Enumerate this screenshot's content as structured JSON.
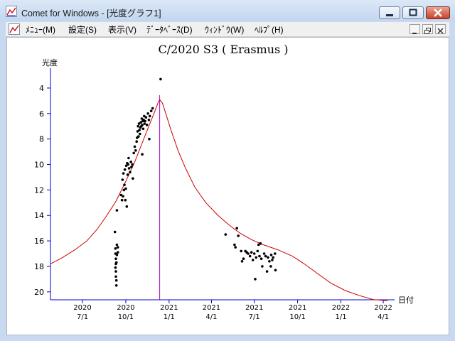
{
  "window": {
    "title": "Comet for Windows - [光度グラフ1]",
    "icons": {
      "app": "graph-app-icon",
      "minimize": "minimize-icon",
      "maximize": "maximize-icon",
      "close": "close-icon"
    }
  },
  "menu": {
    "items": [
      "ﾒﾆｭｰ(M)",
      "設定(S)",
      "表示(V)",
      "ﾃﾞｰﾀﾍﾞｰｽ(D)",
      "ｳｨﾝﾄﾞｳ(W)",
      "ﾍﾙﾌﾟ(H)"
    ]
  },
  "colors": {
    "curve": "#cc0000",
    "marker": "#aa00cc",
    "points": "#000000",
    "axis": "#0000cc"
  },
  "chart_data": {
    "type": "scatter",
    "title": "C/2020 S3 ( Erasmus )",
    "ylabel": "光度",
    "xlabel": "日付",
    "ylim": [
      20,
      3
    ],
    "y_inverted": true,
    "yticks": [
      4,
      6,
      8,
      10,
      12,
      14,
      16,
      18,
      20
    ],
    "xticks": [
      {
        "x": "2020-07-01",
        "year": "2020",
        "md": "7/1"
      },
      {
        "x": "2020-10-01",
        "year": "2020",
        "md": "10/1"
      },
      {
        "x": "2021-01-01",
        "year": "2021",
        "md": "1/1"
      },
      {
        "x": "2021-04-01",
        "year": "2021",
        "md": "4/1"
      },
      {
        "x": "2021-07-01",
        "year": "2021",
        "md": "7/1"
      },
      {
        "x": "2021-10-01",
        "year": "2021",
        "md": "10/1"
      },
      {
        "x": "2022-01-01",
        "year": "2022",
        "md": "1/1"
      },
      {
        "x": "2022-04-01",
        "year": "2022",
        "md": "4/1"
      }
    ],
    "xlim": [
      "2020-04-24",
      "2022-04-25"
    ],
    "perihelion_marker": "2020-12-12",
    "series": [
      {
        "type": "line",
        "points": [
          [
            "2020-04-24",
            17.8
          ],
          [
            "2020-05-20",
            17.3
          ],
          [
            "2020-06-15",
            16.7
          ],
          [
            "2020-07-10",
            16.0
          ],
          [
            "2020-08-01",
            15.1
          ],
          [
            "2020-08-20",
            14.1
          ],
          [
            "2020-09-10",
            12.9
          ],
          [
            "2020-09-30",
            11.4
          ],
          [
            "2020-10-20",
            9.8
          ],
          [
            "2020-11-05",
            8.3
          ],
          [
            "2020-11-20",
            6.9
          ],
          [
            "2020-12-01",
            5.9
          ],
          [
            "2020-12-08",
            5.2
          ],
          [
            "2020-12-12",
            4.9
          ],
          [
            "2020-12-18",
            5.2
          ],
          [
            "2020-12-25",
            6.0
          ],
          [
            "2021-01-05",
            7.3
          ],
          [
            "2021-01-20",
            8.9
          ],
          [
            "2021-02-05",
            10.3
          ],
          [
            "2021-02-25",
            11.8
          ],
          [
            "2021-03-20",
            13.0
          ],
          [
            "2021-04-15",
            14.0
          ],
          [
            "2021-05-10",
            14.8
          ],
          [
            "2021-06-01",
            15.4
          ],
          [
            "2021-06-25",
            15.9
          ],
          [
            "2021-07-20",
            16.3
          ],
          [
            "2021-08-20",
            16.7
          ],
          [
            "2021-09-20",
            17.2
          ],
          [
            "2021-10-15",
            17.8
          ],
          [
            "2021-11-10",
            18.5
          ],
          [
            "2021-12-10",
            19.3
          ],
          [
            "2022-01-10",
            19.9
          ],
          [
            "2022-02-10",
            20.3
          ],
          [
            "2022-03-10",
            20.6
          ],
          [
            "2022-04-10",
            20.7
          ]
        ]
      },
      {
        "type": "scatter",
        "points": [
          [
            "2020-09-08",
            15.3
          ],
          [
            "2020-09-09",
            16.6
          ],
          [
            "2020-09-09",
            17.0
          ],
          [
            "2020-09-10",
            17.4
          ],
          [
            "2020-09-10",
            17.8
          ],
          [
            "2020-09-09",
            18.1
          ],
          [
            "2020-09-10",
            18.4
          ],
          [
            "2020-09-10",
            18.8
          ],
          [
            "2020-09-11",
            19.1
          ],
          [
            "2020-09-11",
            19.5
          ],
          [
            "2020-09-12",
            16.3
          ],
          [
            "2020-09-12",
            17.1
          ],
          [
            "2020-09-14",
            16.9
          ],
          [
            "2020-09-14",
            16.5
          ],
          [
            "2020-09-11",
            17.7
          ],
          [
            "2020-09-12",
            13.6
          ],
          [
            "2020-09-21",
            12.4
          ],
          [
            "2020-09-23",
            12.8
          ],
          [
            "2020-09-24",
            11.2
          ],
          [
            "2020-09-25",
            12.5
          ],
          [
            "2020-09-26",
            10.7
          ],
          [
            "2020-09-27",
            12.0
          ],
          [
            "2020-09-28",
            11.6
          ],
          [
            "2020-09-29",
            10.4
          ],
          [
            "2020-09-30",
            12.8
          ],
          [
            "2020-10-01",
            11.9
          ],
          [
            "2020-10-02",
            10.1
          ],
          [
            "2020-10-03",
            13.3
          ],
          [
            "2020-10-04",
            9.9
          ],
          [
            "2020-10-05",
            10.8
          ],
          [
            "2020-10-06",
            10.0
          ],
          [
            "2020-10-07",
            9.5
          ],
          [
            "2020-10-08",
            10.3
          ],
          [
            "2020-10-10",
            10.6
          ],
          [
            "2020-10-12",
            9.8
          ],
          [
            "2020-10-13",
            10.2
          ],
          [
            "2020-10-15",
            10.0
          ],
          [
            "2020-10-16",
            11.1
          ],
          [
            "2020-10-18",
            9.1
          ],
          [
            "2020-10-20",
            8.6
          ],
          [
            "2020-10-22",
            8.9
          ],
          [
            "2020-10-24",
            8.2
          ],
          [
            "2020-10-25",
            7.9
          ],
          [
            "2020-10-26",
            7.4
          ],
          [
            "2020-10-27",
            7.0
          ],
          [
            "2020-10-28",
            7.8
          ],
          [
            "2020-10-29",
            6.8
          ],
          [
            "2020-10-30",
            7.3
          ],
          [
            "2020-10-31",
            7.6
          ],
          [
            "2020-11-01",
            7.1
          ],
          [
            "2020-11-02",
            6.7
          ],
          [
            "2020-11-03",
            7.0
          ],
          [
            "2020-11-04",
            6.4
          ],
          [
            "2020-11-05",
            6.9
          ],
          [
            "2020-11-06",
            6.6
          ],
          [
            "2020-11-07",
            7.2
          ],
          [
            "2020-11-08",
            6.5
          ],
          [
            "2020-11-09",
            6.2
          ],
          [
            "2020-11-10",
            6.8
          ],
          [
            "2020-11-11",
            6.6
          ],
          [
            "2020-11-13",
            6.3
          ],
          [
            "2020-11-15",
            6.9
          ],
          [
            "2020-11-17",
            6.0
          ],
          [
            "2020-11-19",
            6.5
          ],
          [
            "2020-11-21",
            6.2
          ],
          [
            "2020-11-24",
            5.8
          ],
          [
            "2020-11-27",
            5.6
          ],
          [
            "2020-11-20",
            8.0
          ],
          [
            "2020-11-05",
            9.2
          ],
          [
            "2020-12-14",
            3.3
          ],
          [
            "2021-05-01",
            15.5
          ],
          [
            "2021-05-20",
            16.3
          ],
          [
            "2021-05-22",
            16.5
          ],
          [
            "2021-05-25",
            15.0
          ],
          [
            "2021-05-28",
            15.6
          ],
          [
            "2021-06-03",
            16.8
          ],
          [
            "2021-06-05",
            17.6
          ],
          [
            "2021-06-08",
            17.4
          ],
          [
            "2021-06-12",
            16.8
          ],
          [
            "2021-06-15",
            16.9
          ],
          [
            "2021-06-18",
            17.0
          ],
          [
            "2021-06-22",
            17.2
          ],
          [
            "2021-06-25",
            16.9
          ],
          [
            "2021-06-28",
            17.5
          ],
          [
            "2021-07-01",
            17.0
          ],
          [
            "2021-07-03",
            19.0
          ],
          [
            "2021-07-05",
            17.3
          ],
          [
            "2021-07-08",
            16.8
          ],
          [
            "2021-07-10",
            16.3
          ],
          [
            "2021-07-12",
            17.2
          ],
          [
            "2021-07-14",
            16.2
          ],
          [
            "2021-07-16",
            17.4
          ],
          [
            "2021-07-18",
            18.0
          ],
          [
            "2021-07-22",
            17.0
          ],
          [
            "2021-07-25",
            17.2
          ],
          [
            "2021-07-28",
            18.4
          ],
          [
            "2021-07-30",
            17.3
          ],
          [
            "2021-08-02",
            17.6
          ],
          [
            "2021-08-05",
            18.0
          ],
          [
            "2021-08-06",
            17.1
          ],
          [
            "2021-08-08",
            17.5
          ],
          [
            "2021-08-10",
            17.3
          ],
          [
            "2021-08-14",
            17.0
          ],
          [
            "2021-08-15",
            18.3
          ]
        ]
      }
    ]
  }
}
